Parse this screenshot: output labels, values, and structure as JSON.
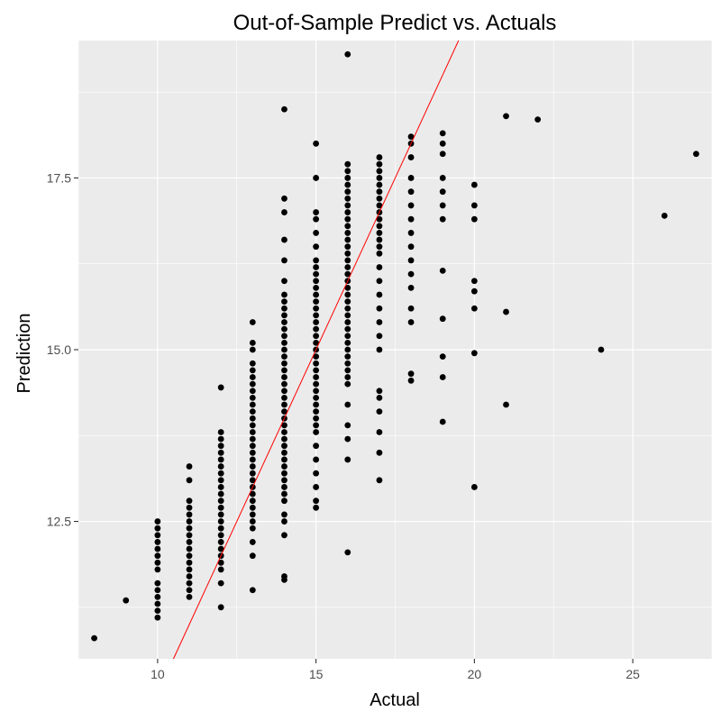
{
  "chart_data": {
    "type": "scatter",
    "title": "Out-of-Sample Predict vs. Actuals",
    "xlabel": "Actual",
    "ylabel": "Prediction",
    "xlim": [
      7.5,
      27.5
    ],
    "ylim": [
      10.5,
      19.5
    ],
    "x_ticks": [
      10,
      15,
      20,
      25
    ],
    "y_ticks": [
      12.5,
      15.0,
      17.5
    ],
    "x_tick_labels": [
      "10",
      "15",
      "20",
      "25"
    ],
    "y_tick_labels": [
      "12.5",
      "15.0",
      "17.5"
    ],
    "grid": true,
    "panel_color": "#ebebeb",
    "point_color": "#000000",
    "line_color": "#ff0000",
    "reference_line": {
      "slope": 1,
      "intercept": 0
    },
    "points": [
      [
        8,
        10.8
      ],
      [
        9,
        11.35
      ],
      [
        10,
        11.1
      ],
      [
        10,
        11.2
      ],
      [
        10,
        11.3
      ],
      [
        10,
        11.4
      ],
      [
        10,
        11.5
      ],
      [
        10,
        11.6
      ],
      [
        10,
        11.8
      ],
      [
        10,
        11.9
      ],
      [
        10,
        12.0
      ],
      [
        10,
        12.1
      ],
      [
        10,
        12.2
      ],
      [
        10,
        12.3
      ],
      [
        10,
        12.4
      ],
      [
        10,
        12.5
      ],
      [
        11,
        11.4
      ],
      [
        11,
        11.5
      ],
      [
        11,
        11.6
      ],
      [
        11,
        11.7
      ],
      [
        11,
        11.8
      ],
      [
        11,
        11.9
      ],
      [
        11,
        12.0
      ],
      [
        11,
        12.1
      ],
      [
        11,
        12.2
      ],
      [
        11,
        12.3
      ],
      [
        11,
        12.4
      ],
      [
        11,
        12.5
      ],
      [
        11,
        12.6
      ],
      [
        11,
        12.7
      ],
      [
        11,
        12.8
      ],
      [
        11,
        13.1
      ],
      [
        11,
        13.3
      ],
      [
        12,
        11.25
      ],
      [
        12,
        11.6
      ],
      [
        12,
        11.8
      ],
      [
        12,
        11.9
      ],
      [
        12,
        12.0
      ],
      [
        12,
        12.1
      ],
      [
        12,
        12.2
      ],
      [
        12,
        12.3
      ],
      [
        12,
        12.4
      ],
      [
        12,
        12.5
      ],
      [
        12,
        12.6
      ],
      [
        12,
        12.7
      ],
      [
        12,
        12.8
      ],
      [
        12,
        12.9
      ],
      [
        12,
        13.0
      ],
      [
        12,
        13.1
      ],
      [
        12,
        13.2
      ],
      [
        12,
        13.3
      ],
      [
        12,
        13.4
      ],
      [
        12,
        13.5
      ],
      [
        12,
        13.6
      ],
      [
        12,
        13.7
      ],
      [
        12,
        13.8
      ],
      [
        12,
        14.45
      ],
      [
        13,
        11.5
      ],
      [
        13,
        12.0
      ],
      [
        13,
        12.2
      ],
      [
        13,
        12.4
      ],
      [
        13,
        12.5
      ],
      [
        13,
        12.6
      ],
      [
        13,
        12.7
      ],
      [
        13,
        12.8
      ],
      [
        13,
        12.9
      ],
      [
        13,
        13.0
      ],
      [
        13,
        13.1
      ],
      [
        13,
        13.2
      ],
      [
        13,
        13.3
      ],
      [
        13,
        13.4
      ],
      [
        13,
        13.5
      ],
      [
        13,
        13.6
      ],
      [
        13,
        13.7
      ],
      [
        13,
        13.8
      ],
      [
        13,
        13.9
      ],
      [
        13,
        14.0
      ],
      [
        13,
        14.1
      ],
      [
        13,
        14.2
      ],
      [
        13,
        14.3
      ],
      [
        13,
        14.4
      ],
      [
        13,
        14.5
      ],
      [
        13,
        14.6
      ],
      [
        13,
        14.7
      ],
      [
        13,
        14.8
      ],
      [
        13,
        15.0
      ],
      [
        13,
        15.1
      ],
      [
        13,
        15.4
      ],
      [
        14,
        11.65
      ],
      [
        14,
        11.7
      ],
      [
        14,
        12.3
      ],
      [
        14,
        12.5
      ],
      [
        14,
        12.6
      ],
      [
        14,
        12.8
      ],
      [
        14,
        12.9
      ],
      [
        14,
        13.0
      ],
      [
        14,
        13.1
      ],
      [
        14,
        13.2
      ],
      [
        14,
        13.3
      ],
      [
        14,
        13.4
      ],
      [
        14,
        13.5
      ],
      [
        14,
        13.6
      ],
      [
        14,
        13.7
      ],
      [
        14,
        13.8
      ],
      [
        14,
        13.9
      ],
      [
        14,
        14.0
      ],
      [
        14,
        14.1
      ],
      [
        14,
        14.2
      ],
      [
        14,
        14.3
      ],
      [
        14,
        14.4
      ],
      [
        14,
        14.5
      ],
      [
        14,
        14.6
      ],
      [
        14,
        14.7
      ],
      [
        14,
        14.8
      ],
      [
        14,
        14.9
      ],
      [
        14,
        15.0
      ],
      [
        14,
        15.1
      ],
      [
        14,
        15.2
      ],
      [
        14,
        15.3
      ],
      [
        14,
        15.4
      ],
      [
        14,
        15.5
      ],
      [
        14,
        15.6
      ],
      [
        14,
        15.7
      ],
      [
        14,
        15.8
      ],
      [
        14,
        16.0
      ],
      [
        14,
        16.3
      ],
      [
        14,
        16.6
      ],
      [
        14,
        17.0
      ],
      [
        14,
        17.2
      ],
      [
        14,
        18.5
      ],
      [
        15,
        12.7
      ],
      [
        15,
        12.8
      ],
      [
        15,
        13.0
      ],
      [
        15,
        13.2
      ],
      [
        15,
        13.4
      ],
      [
        15,
        13.6
      ],
      [
        15,
        13.8
      ],
      [
        15,
        13.9
      ],
      [
        15,
        14.0
      ],
      [
        15,
        14.1
      ],
      [
        15,
        14.2
      ],
      [
        15,
        14.3
      ],
      [
        15,
        14.4
      ],
      [
        15,
        14.5
      ],
      [
        15,
        14.6
      ],
      [
        15,
        14.7
      ],
      [
        15,
        14.8
      ],
      [
        15,
        14.9
      ],
      [
        15,
        15.0
      ],
      [
        15,
        15.1
      ],
      [
        15,
        15.2
      ],
      [
        15,
        15.3
      ],
      [
        15,
        15.4
      ],
      [
        15,
        15.5
      ],
      [
        15,
        15.6
      ],
      [
        15,
        15.7
      ],
      [
        15,
        15.8
      ],
      [
        15,
        15.9
      ],
      [
        15,
        16.0
      ],
      [
        15,
        16.1
      ],
      [
        15,
        16.2
      ],
      [
        15,
        16.3
      ],
      [
        15,
        16.5
      ],
      [
        15,
        16.7
      ],
      [
        15,
        16.9
      ],
      [
        15,
        17.0
      ],
      [
        15,
        17.5
      ],
      [
        15,
        18.0
      ],
      [
        16,
        12.05
      ],
      [
        16,
        13.4
      ],
      [
        16,
        13.7
      ],
      [
        16,
        13.9
      ],
      [
        16,
        14.2
      ],
      [
        16,
        14.5
      ],
      [
        16,
        14.6
      ],
      [
        16,
        14.7
      ],
      [
        16,
        14.8
      ],
      [
        16,
        14.9
      ],
      [
        16,
        15.0
      ],
      [
        16,
        15.1
      ],
      [
        16,
        15.2
      ],
      [
        16,
        15.3
      ],
      [
        16,
        15.4
      ],
      [
        16,
        15.5
      ],
      [
        16,
        15.6
      ],
      [
        16,
        15.7
      ],
      [
        16,
        15.8
      ],
      [
        16,
        15.9
      ],
      [
        16,
        16.0
      ],
      [
        16,
        16.1
      ],
      [
        16,
        16.2
      ],
      [
        16,
        16.3
      ],
      [
        16,
        16.4
      ],
      [
        16,
        16.5
      ],
      [
        16,
        16.6
      ],
      [
        16,
        16.7
      ],
      [
        16,
        16.8
      ],
      [
        16,
        16.9
      ],
      [
        16,
        17.0
      ],
      [
        16,
        17.1
      ],
      [
        16,
        17.2
      ],
      [
        16,
        17.3
      ],
      [
        16,
        17.4
      ],
      [
        16,
        17.5
      ],
      [
        16,
        17.6
      ],
      [
        16,
        17.7
      ],
      [
        16,
        19.3
      ],
      [
        17,
        13.1
      ],
      [
        17,
        13.5
      ],
      [
        17,
        13.8
      ],
      [
        17,
        14.1
      ],
      [
        17,
        14.3
      ],
      [
        17,
        14.4
      ],
      [
        17,
        15.0
      ],
      [
        17,
        15.2
      ],
      [
        17,
        15.4
      ],
      [
        17,
        15.6
      ],
      [
        17,
        15.8
      ],
      [
        17,
        16.0
      ],
      [
        17,
        16.2
      ],
      [
        17,
        16.4
      ],
      [
        17,
        16.5
      ],
      [
        17,
        16.6
      ],
      [
        17,
        16.7
      ],
      [
        17,
        16.8
      ],
      [
        17,
        16.9
      ],
      [
        17,
        17.0
      ],
      [
        17,
        17.1
      ],
      [
        17,
        17.2
      ],
      [
        17,
        17.3
      ],
      [
        17,
        17.4
      ],
      [
        17,
        17.5
      ],
      [
        17,
        17.6
      ],
      [
        17,
        17.7
      ],
      [
        17,
        17.8
      ],
      [
        18,
        14.55
      ],
      [
        18,
        14.65
      ],
      [
        18,
        15.4
      ],
      [
        18,
        15.6
      ],
      [
        18,
        15.9
      ],
      [
        18,
        16.1
      ],
      [
        18,
        16.3
      ],
      [
        18,
        16.5
      ],
      [
        18,
        16.7
      ],
      [
        18,
        16.9
      ],
      [
        18,
        17.1
      ],
      [
        18,
        17.3
      ],
      [
        18,
        17.5
      ],
      [
        18,
        17.8
      ],
      [
        18,
        18.0
      ],
      [
        18,
        18.1
      ],
      [
        19,
        13.95
      ],
      [
        19,
        14.6
      ],
      [
        19,
        14.9
      ],
      [
        19,
        15.45
      ],
      [
        19,
        16.15
      ],
      [
        19,
        16.9
      ],
      [
        19,
        17.1
      ],
      [
        19,
        17.3
      ],
      [
        19,
        17.5
      ],
      [
        19,
        17.85
      ],
      [
        19,
        18.0
      ],
      [
        19,
        18.15
      ],
      [
        20,
        13.0
      ],
      [
        20,
        14.95
      ],
      [
        20,
        15.6
      ],
      [
        20,
        15.85
      ],
      [
        20,
        16.0
      ],
      [
        20,
        16.9
      ],
      [
        20,
        17.1
      ],
      [
        20,
        17.4
      ],
      [
        21,
        14.2
      ],
      [
        21,
        15.55
      ],
      [
        21,
        18.4
      ],
      [
        22,
        18.35
      ],
      [
        24,
        15.0
      ],
      [
        26,
        16.95
      ],
      [
        27,
        17.85
      ]
    ]
  }
}
